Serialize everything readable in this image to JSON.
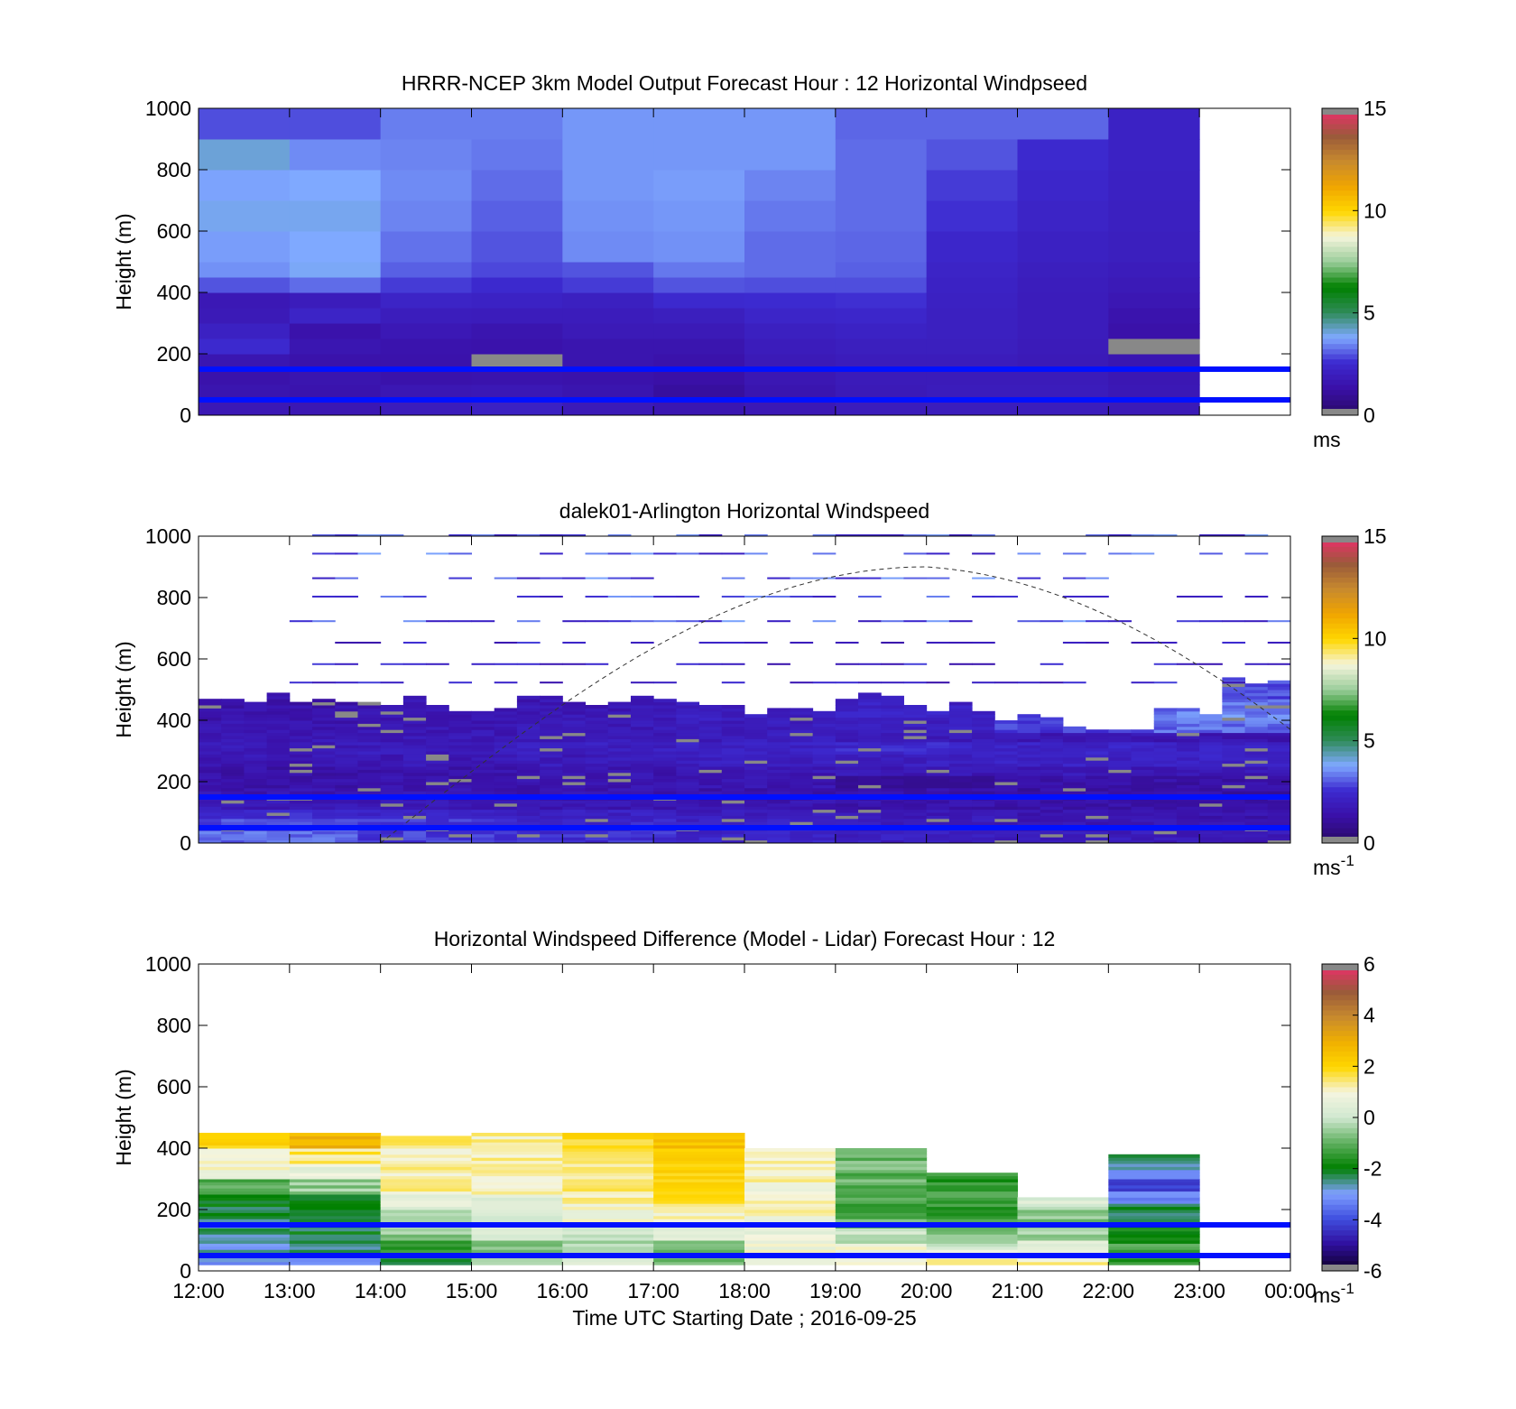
{
  "panels": [
    {
      "title": "HRRR-NCEP 3km Model Output   Forecast Hour : 12 Horizontal Windpseed",
      "ylabel": "Height (m)",
      "colorbar_label": "ms",
      "colorbar_ticks": [
        "0",
        "5",
        "10",
        "15"
      ]
    },
    {
      "title": "dalek01-Arlington  Horizontal Windspeed",
      "ylabel": "Height (m)",
      "colorbar_label": "ms",
      "colorbar_label_sup": "-1",
      "colorbar_ticks": [
        "0",
        "5",
        "10",
        "15"
      ]
    },
    {
      "title": "Horizontal Windspeed Difference (Model - Lidar) Forecast Hour : 12",
      "ylabel": "Height (m)",
      "colorbar_label": "ms",
      "colorbar_label_sup": "-1",
      "colorbar_ticks": [
        "-6",
        "-4",
        "-2",
        "0",
        "2",
        "4",
        "6"
      ]
    }
  ],
  "xlabel": "Time UTC  Starting Date ; 2016-09-25",
  "y_tick_labels": [
    "0",
    "200",
    "400",
    "600",
    "800",
    "1000"
  ],
  "x_tick_labels": [
    "12:00",
    "13:00",
    "14:00",
    "15:00",
    "16:00",
    "17:00",
    "18:00",
    "19:00",
    "20:00",
    "21:00",
    "22:00",
    "23:00",
    "00:00"
  ],
  "chart_data": [
    {
      "type": "heatmap",
      "title": "HRRR-NCEP 3km Model Output   Forecast Hour : 12 Horizontal Windpseed",
      "ylabel": "Height (m)",
      "ylim": [
        0,
        1000
      ],
      "clim": [
        0,
        15
      ],
      "units": "ms",
      "x": [
        "12:00",
        "13:00",
        "14:00",
        "15:00",
        "16:00",
        "17:00",
        "18:00",
        "19:00",
        "20:00",
        "21:00",
        "22:00",
        "23:00"
      ],
      "heights": [
        0,
        50,
        100,
        150,
        200,
        250,
        300,
        350,
        400,
        450,
        500,
        600,
        700,
        800,
        900,
        1000
      ],
      "values": [
        [
          1.5,
          1.2,
          1.0,
          1.3,
          2.8,
          2.2,
          1.6,
          1.5,
          3.6,
          4.6,
          4.8,
          5.2,
          4.9,
          5.5,
          3.5
        ],
        [
          1.4,
          1.1,
          1.2,
          1.0,
          1.3,
          1.0,
          2.4,
          1.8,
          4.0,
          5.1,
          5.0,
          5.2,
          5.0,
          4.5,
          3.5
        ],
        [
          1.8,
          1.4,
          1.0,
          1.0,
          1.1,
          1.5,
          1.9,
          2.4,
          3.2,
          3.8,
          4.1,
          4.4,
          4.5,
          4.4,
          4.3
        ],
        [
          2.2,
          1.5,
          1.1,
          0.0,
          1.0,
          1.2,
          1.8,
          2.3,
          2.8,
          3.4,
          3.6,
          3.8,
          4.0,
          4.2,
          4.3
        ],
        [
          1.6,
          1.2,
          1.0,
          1.2,
          1.2,
          1.6,
          1.8,
          2.1,
          3.2,
          3.6,
          4.5,
          4.6,
          4.7,
          4.7,
          4.7
        ],
        [
          1.3,
          0.5,
          0.8,
          1.0,
          1.2,
          1.6,
          2.0,
          2.8,
          3.6,
          4.2,
          4.6,
          4.7,
          4.8,
          4.7,
          4.7
        ],
        [
          1.5,
          1.2,
          1.4,
          1.6,
          1.8,
          2.1,
          2.5,
          2.9,
          3.5,
          4.0,
          4.0,
          4.2,
          4.4,
          4.7,
          4.7
        ],
        [
          1.8,
          1.6,
          1.7,
          1.8,
          2.0,
          2.3,
          2.6,
          3.0,
          3.5,
          3.8,
          3.9,
          4.0,
          4.0,
          4.0,
          3.9
        ],
        [
          1.9,
          1.8,
          1.7,
          1.8,
          2.0,
          2.1,
          2.1,
          2.2,
          2.3,
          2.4,
          2.6,
          3.0,
          3.2,
          3.6,
          3.9
        ],
        [
          1.9,
          1.8,
          1.7,
          1.6,
          1.7,
          1.8,
          1.8,
          1.8,
          1.9,
          2.0,
          2.2,
          2.4,
          2.6,
          2.8,
          3.9
        ],
        [
          1.6,
          1.5,
          1.4,
          1.3,
          0.0,
          0.9,
          1.1,
          1.4,
          1.6,
          1.8,
          2.0,
          2.1,
          2.2,
          2.3,
          2.3
        ],
        [
          null,
          null,
          null,
          null,
          null,
          null,
          null,
          null,
          null,
          null,
          null,
          null,
          null,
          null,
          null
        ]
      ],
      "overlay_lines_height_m": [
        50,
        150
      ]
    },
    {
      "type": "heatmap",
      "title": "dalek01-Arlington  Horizontal Windspeed",
      "ylabel": "Height (m)",
      "ylim": [
        0,
        1000
      ],
      "clim": [
        0,
        15
      ],
      "units": "ms-1",
      "x_range": [
        "12:00",
        "00:00"
      ],
      "heights": [
        0,
        50,
        100,
        150,
        200,
        250,
        300,
        350,
        400,
        450,
        500,
        600,
        700,
        800,
        900,
        1000
      ],
      "max_height_m": [
        470,
        470,
        460,
        440,
        460,
        470,
        460,
        430,
        470,
        440,
        400,
        370,
        420,
        520
      ],
      "values": [
        [
          4.0,
          3.2,
          2.8,
          2.4,
          2.0,
          1.8,
          1.6
        ],
        [
          3.5,
          3.0,
          2.6,
          2.2,
          1.8,
          1.5,
          1.3
        ],
        [
          2.8,
          2.5,
          2.1,
          1.8,
          1.5,
          1.2,
          1.1
        ],
        [
          1.6,
          1.4,
          1.3,
          1.2,
          1.0,
          0.9,
          0.9
        ],
        [
          1.2,
          1.2,
          1.1,
          1.0,
          0.8,
          0.7,
          0.7
        ],
        [
          1.0,
          1.1,
          1.2,
          1.3,
          0.0,
          0.8,
          0.8
        ],
        [
          0.9,
          1.0,
          1.2,
          1.4,
          1.5,
          1.6,
          1.5
        ],
        [
          1.4,
          1.5,
          1.7,
          1.9,
          2.0,
          2.2,
          2.4
        ],
        [
          1.6,
          1.8,
          2.0,
          2.3,
          2.6,
          2.4,
          2.2
        ],
        [
          1.4,
          1.5,
          1.6,
          1.8,
          1.6,
          1.4,
          1.2
        ],
        [
          1.2,
          1.4,
          1.6,
          1.8,
          2.0,
          3.2,
          4.0
        ],
        [
          1.1,
          1.3,
          1.5,
          2.0,
          2.4,
          3.4,
          4.4
        ],
        [
          1.0,
          1.2,
          1.4,
          1.8,
          2.2,
          3.0,
          4.0
        ],
        [
          1.2,
          1.3,
          1.5,
          1.8,
          2.2,
          2.8,
          3.5
        ]
      ],
      "overlay_lines_height_m": [
        50,
        150
      ],
      "dashed_curve": "boundary layer height estimate, rising from 0 m near 14:00 to ~900 m near 20:00 and descending to ~420 m at 00:00"
    },
    {
      "type": "heatmap",
      "title": "Horizontal Windspeed Difference (Model - Lidar) Forecast Hour : 12",
      "xlabel": "Time UTC  Starting Date ; 2016-09-25",
      "ylabel": "Height (m)",
      "ylim": [
        0,
        1000
      ],
      "clim": [
        -6,
        6
      ],
      "units": "ms-1",
      "x": [
        "12:00",
        "13:00",
        "14:00",
        "15:00",
        "16:00",
        "17:00",
        "18:00",
        "19:00",
        "20:00",
        "21:00",
        "22:00",
        "23:00"
      ],
      "top_height_m": [
        450,
        450,
        440,
        450,
        450,
        450,
        400,
        400,
        360,
        300,
        380,
        null
      ],
      "values": [
        [
          -3.0,
          -3.2,
          -2.0,
          0.0,
          0.5,
          -1.0,
          0.5,
          1.0,
          1.0,
          1.2,
          -1.5,
          null
        ],
        [
          -2.8,
          -2.5,
          -1.5,
          -0.5,
          -0.3,
          -0.8,
          0.8,
          0.8,
          0.6,
          0.8,
          -1.2,
          null
        ],
        [
          -2.6,
          -2.2,
          -0.5,
          0.2,
          0.0,
          0.5,
          0.8,
          0.0,
          -0.6,
          0.3,
          -1.8,
          null
        ],
        [
          -2.4,
          -2.0,
          -0.3,
          0.3,
          0.8,
          1.2,
          0.9,
          -1.0,
          -1.2,
          -0.5,
          -2.0,
          null
        ],
        [
          -2.2,
          -1.8,
          0.5,
          0.6,
          1.2,
          1.6,
          1.0,
          -1.2,
          -1.4,
          -0.6,
          -2.4,
          null
        ],
        [
          -1.0,
          -0.5,
          1.2,
          1.1,
          1.5,
          2.0,
          1.0,
          -1.3,
          -1.6,
          -0.4,
          -3.5,
          null
        ],
        [
          0.8,
          0.6,
          1.3,
          1.2,
          1.4,
          2.1,
          1.1,
          -1.0,
          -1.4,
          0.2,
          -4.5,
          null
        ],
        [
          1.2,
          1.5,
          1.2,
          1.2,
          1.6,
          2.4,
          1.2,
          -0.5,
          -1.6,
          null,
          -3.0,
          null
        ],
        [
          2.2,
          2.8,
          1.3,
          1.2,
          2.0,
          2.6,
          1.1,
          -1.0,
          null,
          null,
          -2.5,
          null
        ]
      ],
      "overlay_lines_height_m": [
        50,
        150
      ]
    }
  ],
  "colormaps": {
    "speed": [
      "#2a0a6b",
      "#3a10a8",
      "#3c2ad0",
      "#7fa9ff",
      "#2e8b57",
      "#008000",
      "#9acd9a",
      "#f5f5dc",
      "#ffd700",
      "#f0a500",
      "#c88a2e",
      "#9a5a3a",
      "#e8306a"
    ],
    "diff": [
      "#100030",
      "#3010a0",
      "#4050e0",
      "#80a0ff",
      "#008000",
      "#60b060",
      "#d0e8d0",
      "#f5f5e0",
      "#ffd700",
      "#f0b000",
      "#c88a2e",
      "#9a5a3a",
      "#e8306a"
    ]
  },
  "overlay_line_color": "#0010ff"
}
